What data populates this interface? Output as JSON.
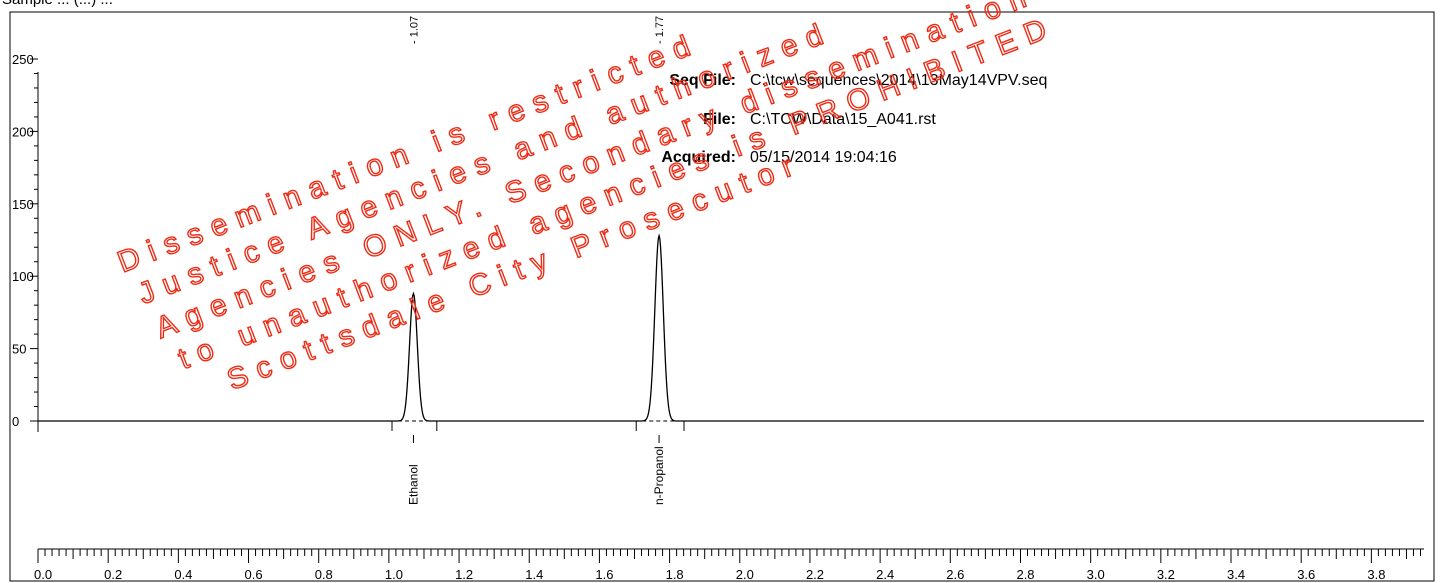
{
  "header": {
    "partial_title": "Sample ... (...) ..."
  },
  "info": {
    "seq_file_label": "Seq File:",
    "seq_file_value": "C:\\tcw\\sequences\\2014\\13May14VPV.seq",
    "file_label": "File:",
    "file_value": "C:\\TCW\\Data\\15_A041.rst",
    "acquired_label": "Acquired:",
    "acquired_value": "05/15/2014 19:04:16"
  },
  "watermark": {
    "color": "#ee2b15",
    "lines": [
      "Dissemination is restricted",
      "Justice Agencies and authorized",
      "Agencies ONLY. Secondary dissemination",
      "to unauthorized agencies is PROHIBITED",
      "Scottsdale City Prosecutor"
    ]
  },
  "chart_data": {
    "type": "line",
    "xlim": [
      0.0,
      3.95
    ],
    "ylim": [
      0,
      250
    ],
    "x_ticks": [
      "0.0",
      "0.2",
      "0.4",
      "0.6",
      "0.8",
      "1.0",
      "1.2",
      "1.4",
      "1.6",
      "1.8",
      "2.0",
      "2.2",
      "2.4",
      "2.6",
      "2.8",
      "3.0",
      "3.2",
      "3.4",
      "3.6",
      "3.8"
    ],
    "y_ticks": [
      "0",
      "50",
      "100",
      "150",
      "200",
      "250"
    ],
    "baseline": 0,
    "peaks": [
      {
        "name": "Ethanol",
        "retention_time": 1.07,
        "rt_label": "1.07",
        "height": 88,
        "width": 0.011
      },
      {
        "name": "n-Propanol",
        "retention_time": 1.77,
        "rt_label": "1.77",
        "height": 128,
        "width": 0.012
      }
    ]
  }
}
